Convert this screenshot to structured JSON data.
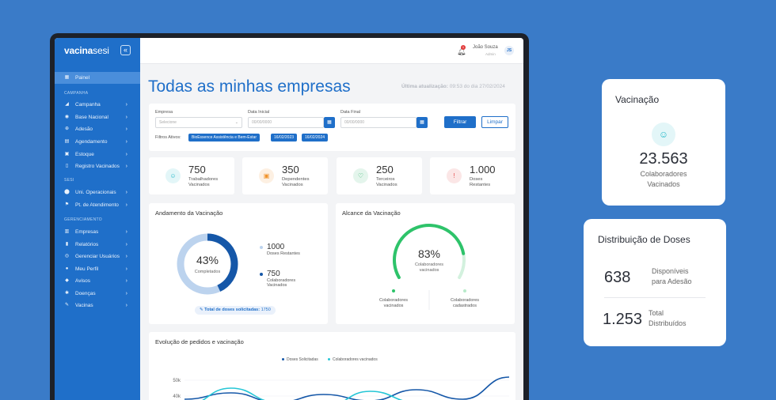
{
  "app": {
    "logo_bold": "vacina",
    "logo_light": "sesi"
  },
  "sidebar": {
    "active": "Painel",
    "sections": [
      {
        "label": "CAMPANHA",
        "items": [
          "Campanha",
          "Base Nacional",
          "Adesão",
          "Agendamento",
          "Estoque",
          "Registro Vacinados"
        ]
      },
      {
        "label": "SESI",
        "items": [
          "Uni. Operacionais",
          "Pt. de Atendimento"
        ]
      },
      {
        "label": "GERENCIAMENTO",
        "items": [
          "Empresas",
          "Relatórios",
          "Gerenciar Usuários",
          "Meu Perfil",
          "Avisos",
          "Doenças",
          "Vacinas"
        ]
      }
    ]
  },
  "topbar": {
    "notifications": "1",
    "user_name": "João Souza",
    "user_role": "Admin",
    "avatar": "JS"
  },
  "page": {
    "title": "Todas as minhas empresas",
    "last_update_label": "Última atualização:",
    "last_update_value": "09:53 do dia 27/02/2024"
  },
  "filters": {
    "empresa_label": "Empresa",
    "empresa_placeholder": "Selecione",
    "data_inicial_label": "Data Inicial",
    "data_inicial_placeholder": "00/00/0000",
    "data_final_label": "Data Final",
    "data_final_placeholder": "00/00/0000",
    "filtrar": "Filtrar",
    "limpar": "Limpar",
    "active_label": "Filtros Ativos:",
    "chips": [
      "BioEssence Assistência e Bem-Estar",
      "16/02/2023",
      "16/02/2024"
    ]
  },
  "stats": [
    {
      "value": "750",
      "label1": "Trabalhadores",
      "label2": "Vacinados",
      "color": "#25b8c9",
      "bg": "#e3f6f8",
      "icon": "users-icon"
    },
    {
      "value": "350",
      "label1": "Dependentes",
      "label2": "Vacinados",
      "color": "#f0932b",
      "bg": "#fdf0e2",
      "icon": "family-icon"
    },
    {
      "value": "250",
      "label1": "Terceiros",
      "label2": "Vacinados",
      "color": "#2fb36b",
      "bg": "#e4f5ec",
      "icon": "heart-icon"
    },
    {
      "value": "1.000",
      "label1": "Doses",
      "label2": "Restantes",
      "color": "#e54b4b",
      "bg": "#fbe6e6",
      "icon": "alert-icon"
    }
  ],
  "andamento": {
    "title": "Andamento da Vacinação",
    "percent": "43%",
    "percent_value": 43,
    "center_label": "Completados",
    "legend": [
      {
        "value": "1000",
        "label1": "Doses Restantes",
        "label2": "",
        "color": "#bcd3ee"
      },
      {
        "value": "750",
        "label1": "Colaboradores",
        "label2": "Vacinados",
        "color": "#1557a8"
      }
    ],
    "total_label": "Total de doses solicitadas:",
    "total_value": "1750"
  },
  "alcance": {
    "title": "Alcance da Vacinação",
    "percent": "83%",
    "percent_value": 83,
    "center_label1": "Colaboradores",
    "center_label2": "vacinados",
    "left_label1": "Colaboradores",
    "left_label2": "vacinados",
    "right_label1": "Colaboradores",
    "right_label2": "cadastrados",
    "color": "#2ec36a",
    "track": "#d3f1de"
  },
  "evolucao": {
    "title": "Evolução de pedidos e vacinação",
    "legend": [
      {
        "name": "Doses Solicitadas",
        "color": "#1557a8"
      },
      {
        "name": "Colaboradores vacinados",
        "color": "#25c6d6"
      }
    ]
  },
  "chart_data": {
    "type": "line",
    "title": "Evolução de pedidos e vacinação",
    "yticks": [
      "50k",
      "40k"
    ],
    "series": [
      {
        "name": "Doses Solicitadas",
        "values": [
          38,
          42,
          36,
          41,
          37,
          44,
          38,
          52
        ]
      },
      {
        "name": "Colaboradores vacinados",
        "values": [
          34,
          45,
          36,
          33,
          43,
          36,
          30,
          34
        ]
      }
    ]
  },
  "vacinacao_card": {
    "title": "Vacinação",
    "value": "23.563",
    "label1": "Colaboradores",
    "label2": "Vacinados"
  },
  "doses_card": {
    "title": "Distribuição de Doses",
    "rows": [
      {
        "value": "638",
        "label1": "Disponíveis",
        "label2": "para Adesão"
      },
      {
        "value": "1.253",
        "label1": "Total",
        "label2": "Distribuídos"
      }
    ]
  }
}
